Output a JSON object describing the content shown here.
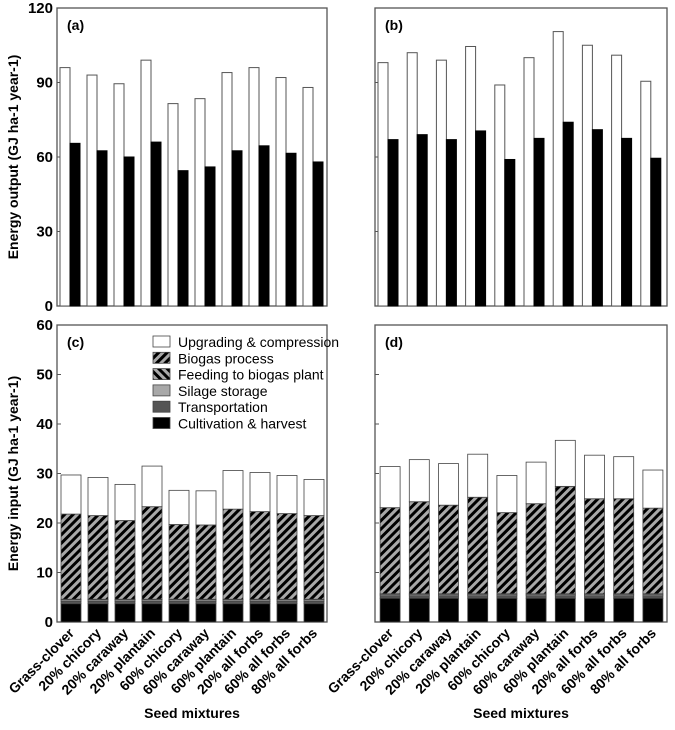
{
  "chart_data": [
    {
      "type": "bar",
      "panel": "(a)",
      "ylabel": "Energy output (GJ ha-1 year-1)",
      "ylim": [
        0,
        120
      ],
      "yticks": [
        "0",
        "30",
        "60",
        "90",
        "120"
      ],
      "categories": [
        "Grass-clover",
        "20% chicory",
        "20% caraway",
        "20% plantain",
        "60% chicory",
        "60% caraway",
        "60% plantain",
        "20% all forbs",
        "60% all forbs",
        "80% all forbs"
      ],
      "series": [
        {
          "name": "white",
          "color": "#ffffff",
          "values": [
            96,
            93,
            89.5,
            99,
            81.5,
            83.5,
            94,
            96,
            92,
            88
          ]
        },
        {
          "name": "black",
          "color": "#000000",
          "values": [
            65.5,
            62.5,
            60,
            66,
            54.5,
            56,
            62.5,
            64.5,
            61.5,
            58
          ]
        }
      ]
    },
    {
      "type": "bar",
      "panel": "(b)",
      "ylim": [
        0,
        120
      ],
      "categories": [
        "Grass-clover",
        "20% chicory",
        "20% caraway",
        "20% plantain",
        "60% chicory",
        "60% caraway",
        "60% plantain",
        "20% all forbs",
        "60% all forbs",
        "80% all forbs"
      ],
      "series": [
        {
          "name": "white",
          "color": "#ffffff",
          "values": [
            98,
            102,
            99,
            104.5,
            89,
            100,
            110.5,
            105,
            101,
            90.5
          ]
        },
        {
          "name": "black",
          "color": "#000000",
          "values": [
            67,
            69,
            67,
            70.5,
            59,
            67.5,
            74,
            71,
            67.5,
            59.5
          ]
        }
      ]
    },
    {
      "type": "bar",
      "stacked": true,
      "panel": "(c)",
      "ylabel": "Energy input (GJ ha-1 year-1)",
      "xlabel": "Seed mixtures",
      "ylim": [
        0,
        60
      ],
      "yticks": [
        "0",
        "10",
        "20",
        "30",
        "40",
        "50",
        "60"
      ],
      "legend_position": "top-right",
      "categories": [
        "Grass-clover",
        "20% chicory",
        "20% caraway",
        "20% plantain",
        "60% chicory",
        "60% caraway",
        "60% plantain",
        "20% all forbs",
        "60% all forbs",
        "80% all forbs"
      ],
      "series": [
        {
          "name": "Cultivation & harvest",
          "values": [
            3.7,
            3.7,
            3.7,
            3.7,
            3.7,
            3.7,
            3.7,
            3.7,
            3.7,
            3.7
          ]
        },
        {
          "name": "Transportation",
          "values": [
            0.5,
            0.5,
            0.5,
            0.5,
            0.5,
            0.5,
            0.5,
            0.5,
            0.5,
            0.5
          ]
        },
        {
          "name": "Silage storage",
          "values": [
            0.3,
            0.3,
            0.3,
            0.3,
            0.3,
            0.3,
            0.3,
            0.3,
            0.3,
            0.3
          ]
        },
        {
          "name": "Feeding to biogas plant",
          "values": [
            0.1,
            0.1,
            0.1,
            0.1,
            0.1,
            0.1,
            0.1,
            0.1,
            0.1,
            0.1
          ]
        },
        {
          "name": "Biogas process",
          "values": [
            17.2,
            16.9,
            15.9,
            18.7,
            15.1,
            15.0,
            18.2,
            17.7,
            17.3,
            16.9
          ]
        },
        {
          "name": "Upgrading & compression",
          "values": [
            7.9,
            7.7,
            7.3,
            8.2,
            6.9,
            6.9,
            7.8,
            7.9,
            7.7,
            7.3
          ]
        }
      ]
    },
    {
      "type": "bar",
      "stacked": true,
      "panel": "(d)",
      "xlabel": "Seed mixtures",
      "ylim": [
        0,
        60
      ],
      "categories": [
        "Grass-clover",
        "20% chicory",
        "20% caraway",
        "20% plantain",
        "60% chicory",
        "60% caraway",
        "60% plantain",
        "20% all forbs",
        "60% all forbs",
        "80% all forbs"
      ],
      "series": [
        {
          "name": "Cultivation & harvest",
          "values": [
            4.8,
            4.8,
            4.8,
            4.8,
            4.8,
            4.8,
            4.8,
            4.8,
            4.8,
            4.8
          ]
        },
        {
          "name": "Transportation",
          "values": [
            0.5,
            0.5,
            0.5,
            0.5,
            0.5,
            0.5,
            0.5,
            0.5,
            0.5,
            0.5
          ]
        },
        {
          "name": "Silage storage",
          "values": [
            0.3,
            0.3,
            0.3,
            0.3,
            0.3,
            0.3,
            0.3,
            0.3,
            0.3,
            0.3
          ]
        },
        {
          "name": "Feeding to biogas plant",
          "values": [
            0.1,
            0.1,
            0.1,
            0.1,
            0.1,
            0.1,
            0.1,
            0.1,
            0.1,
            0.1
          ]
        },
        {
          "name": "Biogas process",
          "values": [
            17.4,
            18.6,
            17.9,
            19.5,
            16.4,
            18.2,
            21.7,
            19.2,
            19.2,
            17.3
          ]
        },
        {
          "name": "Upgrading & compression",
          "values": [
            8.3,
            8.5,
            8.4,
            8.7,
            7.5,
            8.4,
            9.3,
            8.8,
            8.5,
            7.7
          ]
        }
      ]
    }
  ]
}
